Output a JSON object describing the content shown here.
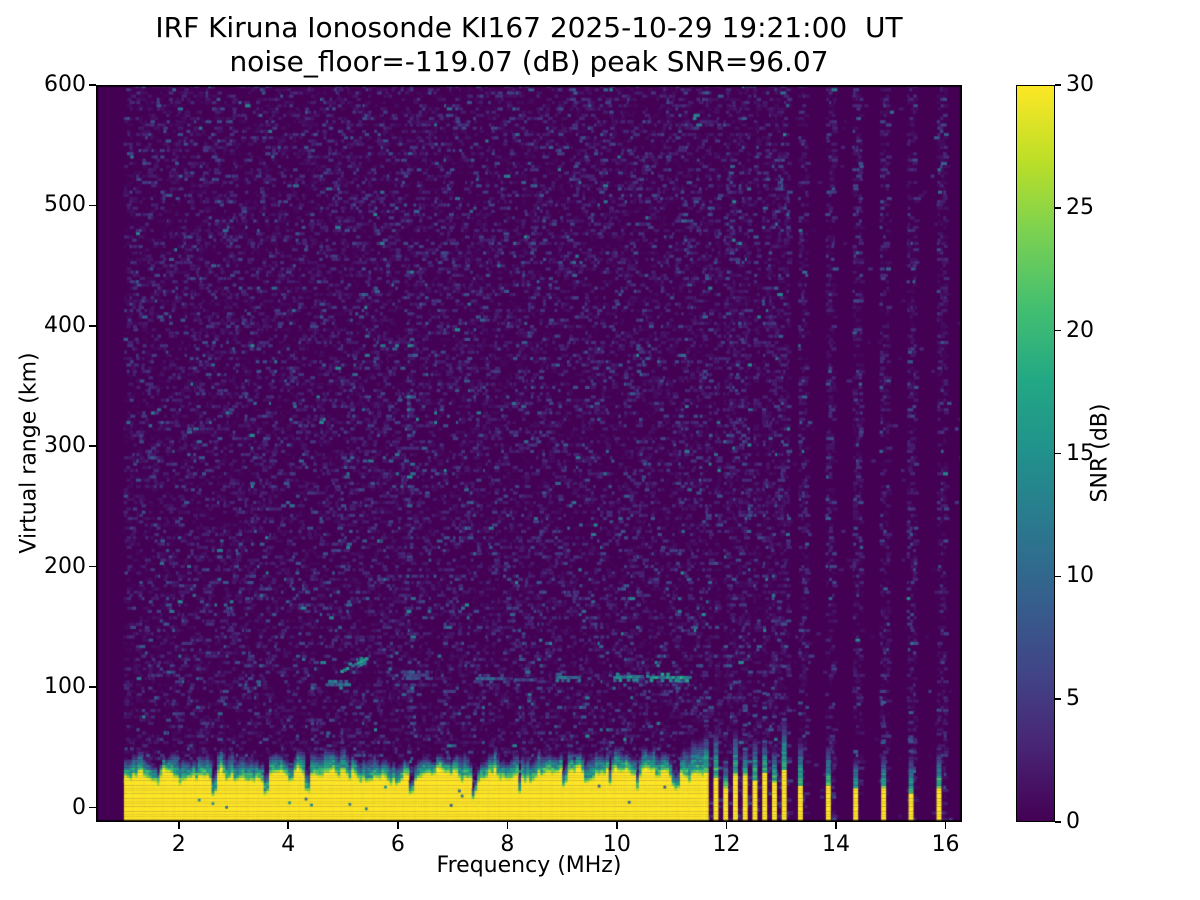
{
  "figure": {
    "background_color": "#ffffff",
    "accent_colors": {
      "colormap_min": "#440154",
      "colormap_max": "#fde725"
    }
  },
  "chart_data": {
    "type": "heatmap",
    "title": "IRF Kiruna Ionosonde KI167 2025-10-29 19:21:00  UT",
    "subtitle": "noise_floor=-119.07 (dB) peak SNR=96.07",
    "station": "IRF Kiruna Ionosonde KI167",
    "timestamp_ut": "2025-10-29 19:21:00",
    "noise_floor_db": -119.07,
    "peak_snr_db": 96.07,
    "xlabel": "Frequency (MHz)",
    "ylabel": "Virtual range (km)",
    "x_ticks": [
      2,
      4,
      6,
      8,
      10,
      12,
      14,
      16
    ],
    "y_ticks": [
      0,
      100,
      200,
      300,
      400,
      500,
      600
    ],
    "x_range_mhz": [
      0.49,
      16.3
    ],
    "y_range_km": [
      -12,
      600
    ],
    "data_start_mhz": 1.0,
    "grid": false,
    "legend": false,
    "colorbar": {
      "label": "SNR (dB)",
      "ticks": [
        0,
        5,
        10,
        15,
        20,
        25,
        30
      ],
      "range_db": [
        0,
        30
      ],
      "colormap": "viridis",
      "position": "right",
      "stops": [
        [
          0.0,
          "#440154"
        ],
        [
          0.1,
          "#482475"
        ],
        [
          0.2,
          "#414487"
        ],
        [
          0.3,
          "#355f8d"
        ],
        [
          0.4,
          "#2a788e"
        ],
        [
          0.5,
          "#21918c"
        ],
        [
          0.6,
          "#22a884"
        ],
        [
          0.7,
          "#44bf70"
        ],
        [
          0.8,
          "#7ad151"
        ],
        [
          0.9,
          "#bddf26"
        ],
        [
          1.0,
          "#fde725"
        ]
      ]
    },
    "features": {
      "noise_speckle": {
        "density": 0.4,
        "mean_db": 2.0,
        "stripe_column_density": 0.5,
        "quiet_density": 0.012
      },
      "transmitter_band": {
        "freq_start_mhz": 1.0,
        "freq_end_mhz": 11.58,
        "top_km_base": 20,
        "top_km_var": 18,
        "snr_db": 30,
        "notches": [
          [
            1.62,
            0.04,
            0.55
          ],
          [
            2.62,
            0.07,
            0.3
          ],
          [
            3.02,
            0.05,
            0.5
          ],
          [
            3.57,
            0.07,
            0.35
          ],
          [
            4.33,
            0.07,
            0.3
          ],
          [
            5.08,
            0.04,
            0.55
          ],
          [
            6.22,
            0.08,
            0.25
          ],
          [
            7.36,
            0.07,
            0.3
          ],
          [
            8.2,
            0.05,
            0.5
          ],
          [
            9.02,
            0.06,
            0.45
          ],
          [
            9.86,
            0.04,
            0.6
          ],
          [
            10.36,
            0.06,
            0.45
          ],
          [
            11.08,
            0.05,
            0.5
          ]
        ]
      },
      "echo_segments": [
        {
          "f0": 4.68,
          "f1": 5.08,
          "km0": 102,
          "km1": 102,
          "db": 11
        },
        {
          "f0": 4.95,
          "f1": 5.42,
          "km0": 113,
          "km1": 124,
          "db": 14
        },
        {
          "f0": 6.1,
          "f1": 6.5,
          "km0": 110,
          "km1": 110,
          "db": 7
        },
        {
          "f0": 7.42,
          "f1": 7.95,
          "km0": 107,
          "km1": 107,
          "db": 9
        },
        {
          "f0": 8.12,
          "f1": 8.52,
          "km0": 106,
          "km1": 106,
          "db": 7
        },
        {
          "f0": 8.83,
          "f1": 9.32,
          "km0": 108,
          "km1": 108,
          "db": 10
        },
        {
          "f0": 9.93,
          "f1": 10.55,
          "km0": 108,
          "km1": 109,
          "db": 13
        },
        {
          "f0": 10.6,
          "f1": 11.32,
          "km0": 108,
          "km1": 108,
          "db": 15
        }
      ],
      "vertical_streak": {
        "freq_mhz": 6.2,
        "halfwidth_mhz": 0.07,
        "km_range": [
          25,
          450
        ],
        "mean_db": 4
      },
      "rfi_stripes": {
        "cluster": {
          "start_mhz": 11.63,
          "spacing_mhz": 0.178,
          "count": 9
        },
        "sparse_mhz": [
          13.35,
          13.86,
          14.36,
          14.87,
          15.37,
          15.88
        ],
        "stripe_width_mhz": 0.09
      }
    },
    "render_seed": 7
  }
}
